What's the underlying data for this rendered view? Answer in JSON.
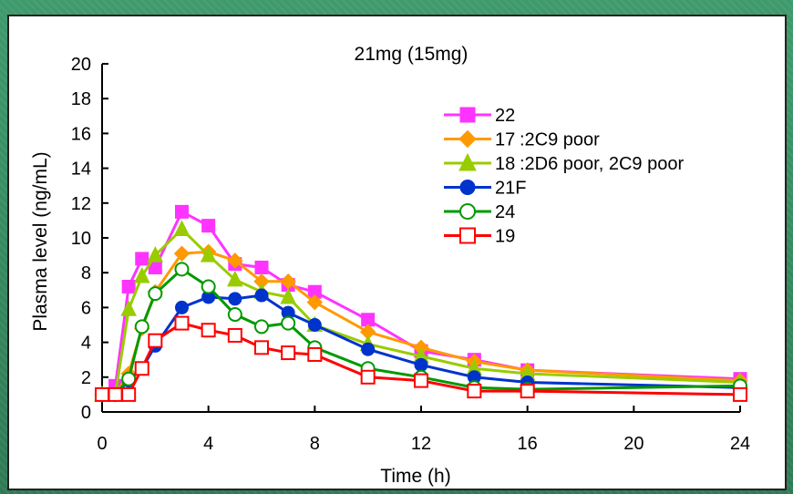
{
  "colors": {
    "background": "#3a8a63",
    "panel": "#ffffff"
  },
  "chart_data": {
    "type": "line",
    "title": "21mg (15mg)",
    "xlabel": "Time (h)",
    "ylabel": "Plasma level (ng/mL)",
    "xlim": [
      0,
      24
    ],
    "ylim": [
      0,
      20
    ],
    "xticks": [
      0,
      4,
      8,
      12,
      16,
      20,
      24
    ],
    "yticks": [
      0,
      2,
      4,
      6,
      8,
      10,
      12,
      14,
      16,
      18,
      20
    ],
    "grid": false,
    "legend_position": "right",
    "series": [
      {
        "name": "22",
        "note": "",
        "color": "#ff33ff",
        "marker": "square-filled",
        "x": [
          0,
          0.5,
          1,
          1.5,
          2,
          3,
          4,
          5,
          6,
          7,
          8,
          10,
          12,
          14,
          16,
          24
        ],
        "y": [
          1.0,
          1.5,
          7.2,
          8.8,
          8.3,
          11.5,
          10.7,
          8.5,
          8.3,
          7.3,
          6.9,
          5.3,
          3.5,
          3.0,
          2.4,
          1.9
        ]
      },
      {
        "name": "17",
        "note": ":2C9 poor",
        "color": "#ff9900",
        "marker": "diamond-filled",
        "x": [
          0,
          0.5,
          1,
          1.5,
          2,
          3,
          4,
          5,
          6,
          7,
          8,
          10,
          12,
          14,
          16,
          24
        ],
        "y": [
          1.0,
          1.0,
          2.2,
          4.8,
          6.9,
          9.1,
          9.2,
          8.7,
          7.5,
          7.5,
          6.3,
          4.6,
          3.7,
          2.9,
          2.4,
          1.8
        ]
      },
      {
        "name": "18",
        "note": ":2D6 poor, 2C9 poor",
        "color": "#99cc00",
        "marker": "triangle-filled",
        "x": [
          0,
          0.5,
          1,
          1.5,
          2,
          3,
          4,
          5,
          6,
          7,
          8,
          10,
          12,
          14,
          16,
          24
        ],
        "y": [
          1.0,
          1.0,
          5.9,
          7.8,
          9.0,
          10.5,
          9.0,
          7.6,
          6.9,
          6.6,
          5.0,
          3.9,
          3.2,
          2.5,
          2.2,
          1.7
        ]
      },
      {
        "name": "21F",
        "note": "",
        "color": "#0033cc",
        "marker": "circle-filled",
        "x": [
          0,
          0.5,
          1,
          1.5,
          2,
          3,
          4,
          5,
          6,
          7,
          8,
          10,
          12,
          14,
          16,
          24
        ],
        "y": [
          1.0,
          1.0,
          1.8,
          2.5,
          3.8,
          6.0,
          6.6,
          6.5,
          6.7,
          5.7,
          5.0,
          3.6,
          2.7,
          2.0,
          1.7,
          1.4
        ]
      },
      {
        "name": "24",
        "note": "",
        "color": "#009900",
        "marker": "circle-open",
        "x": [
          0,
          0.5,
          1,
          1.5,
          2,
          3,
          4,
          5,
          6,
          7,
          8,
          10,
          12,
          14,
          16,
          24
        ],
        "y": [
          1.0,
          1.0,
          1.9,
          4.9,
          6.8,
          8.2,
          7.2,
          5.6,
          4.9,
          5.1,
          3.7,
          2.5,
          2.0,
          1.4,
          1.3,
          1.5
        ]
      },
      {
        "name": "19",
        "note": "",
        "color": "#ff0000",
        "marker": "square-open",
        "x": [
          0,
          0.5,
          1,
          1.5,
          2,
          3,
          4,
          5,
          6,
          7,
          8,
          10,
          12,
          14,
          16,
          24
        ],
        "y": [
          1.0,
          1.0,
          1.0,
          2.5,
          4.1,
          5.1,
          4.7,
          4.4,
          3.7,
          3.4,
          3.3,
          2.0,
          1.8,
          1.2,
          1.2,
          1.0
        ]
      }
    ]
  }
}
